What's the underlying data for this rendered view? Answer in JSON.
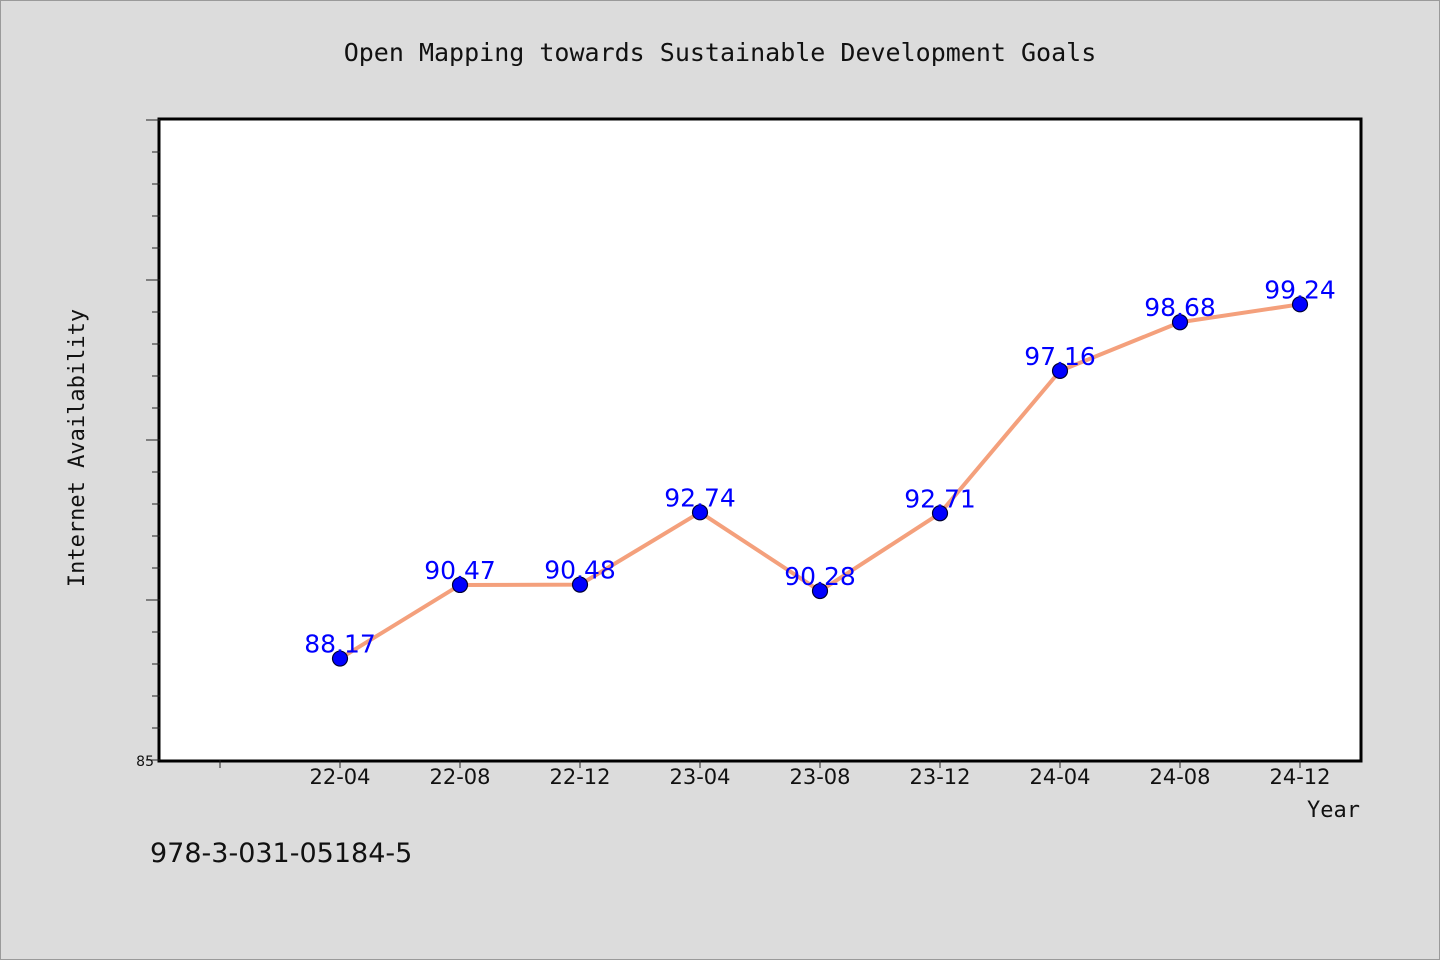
{
  "chart_data": {
    "type": "line",
    "title": "Open Mapping towards Sustainable Development Goals",
    "xlabel": "Year",
    "ylabel": "Internet Availability",
    "categories": [
      "22-04",
      "22-08",
      "22-12",
      "23-04",
      "23-08",
      "23-12",
      "24-04",
      "24-08",
      "24-12"
    ],
    "series": [
      {
        "values": [
          88.17,
          90.47,
          90.48,
          92.74,
          90.28,
          92.71,
          97.16,
          98.68,
          99.24
        ],
        "labels": [
          "88.17",
          "90.47",
          "90.48",
          "92.74",
          "90.28",
          "92.71",
          "97.16",
          "98.68",
          "99.24"
        ]
      }
    ],
    "ylim": [
      85,
      105
    ],
    "yticks_labeled": [
      "85"
    ],
    "grid": false,
    "legend": "none",
    "colors": {
      "line": "#f4a07c",
      "marker": "#0000ff",
      "label": "#0000ff",
      "plot_background": "#ffffff",
      "figure_background": "#dcdcdc"
    }
  },
  "footnote": "978-3-031-05184-5"
}
